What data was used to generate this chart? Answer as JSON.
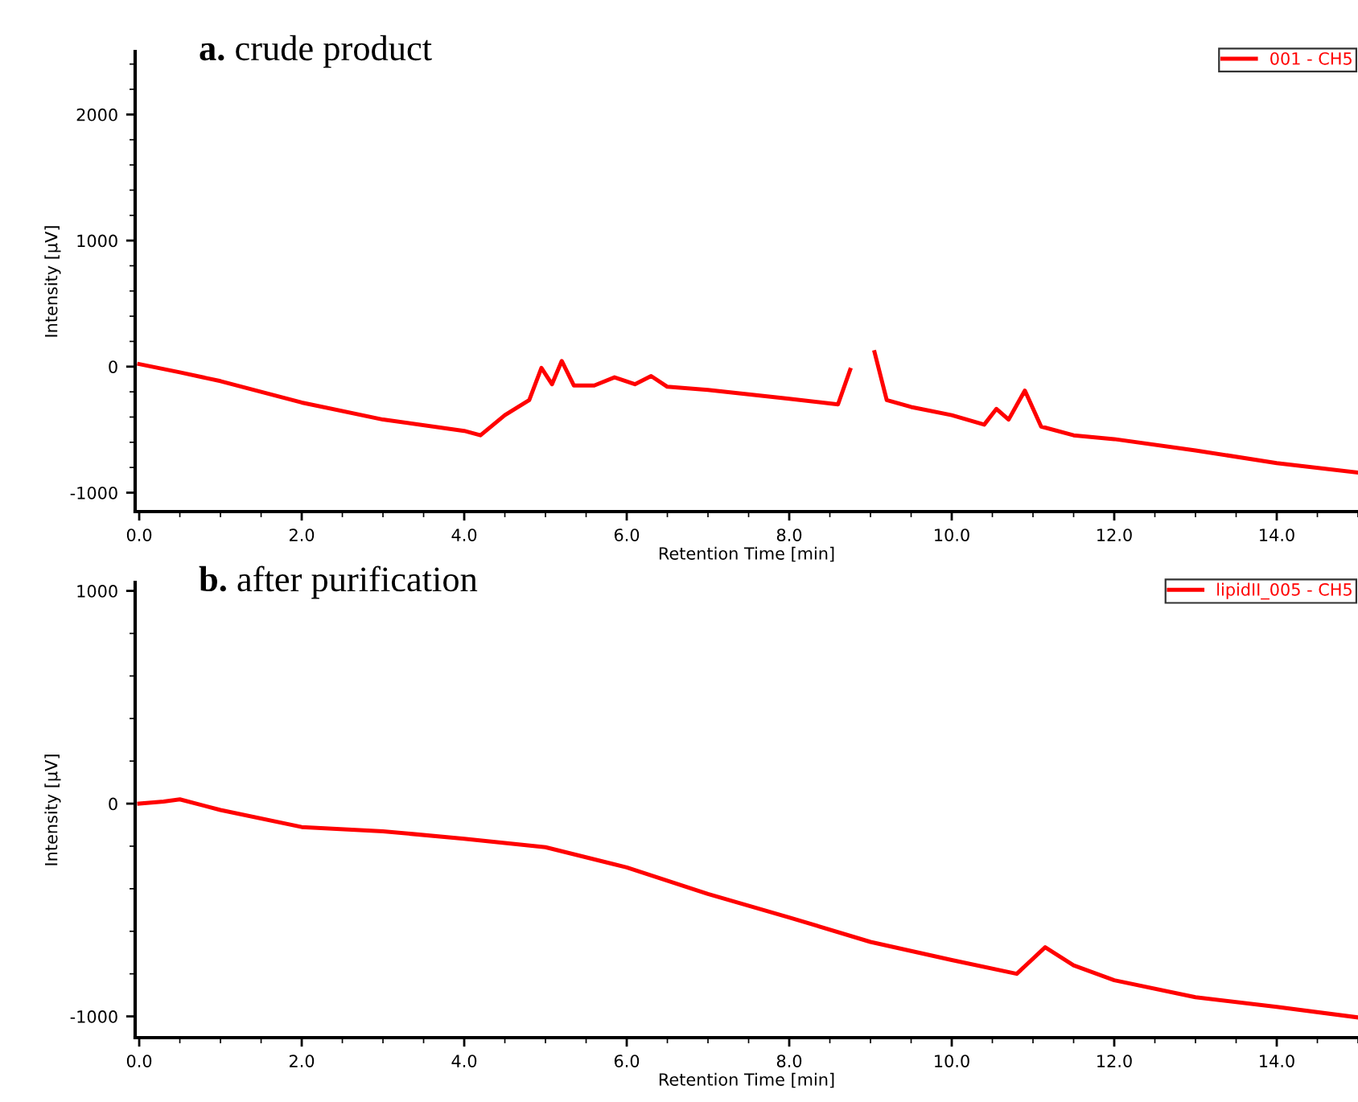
{
  "chart_data": [
    {
      "type": "line",
      "title": "a. crude product",
      "xlabel": "Retention Time [min]",
      "ylabel": "Intensity [µV]",
      "xlim": [
        -0.05,
        15.0
      ],
      "xticks": [
        {
          "value": 0,
          "label": "0.0"
        },
        {
          "value": 2,
          "label": "2.0"
        },
        {
          "value": 4,
          "label": "4.0"
        },
        {
          "value": 6,
          "label": "6.0"
        },
        {
          "value": 8,
          "label": "8.0"
        },
        {
          "value": 10,
          "label": "10.0"
        },
        {
          "value": 12,
          "label": "12.0"
        },
        {
          "value": 14,
          "label": "14.0"
        }
      ],
      "ylim": [
        -1150,
        2500
      ],
      "yticks": [
        -1000,
        0,
        1000,
        2000
      ],
      "grid": false,
      "legend": "top right",
      "marker": "none",
      "line_style": "solid",
      "series": [
        {
          "name": "001 - CH5",
          "color": "#ff0000",
          "x": [
            0,
            0.5,
            1.0,
            2.0,
            3.0,
            4.0,
            4.2,
            4.5,
            4.8,
            4.95,
            5.08,
            5.2,
            5.35,
            5.6,
            5.85,
            6.1,
            6.3,
            6.5,
            7.0,
            8.0,
            8.6,
            8.75,
            8.82,
            8.92,
            9.05,
            9.2,
            9.5,
            10.0,
            10.4,
            10.55,
            10.7,
            10.9,
            11.1,
            11.5,
            12.0,
            13.0,
            14.0,
            15.0
          ],
          "values": [
            20,
            -45,
            -115,
            -285,
            -420,
            -510,
            -545,
            -385,
            -265,
            -10,
            -140,
            45,
            -150,
            -150,
            -85,
            -140,
            -75,
            -160,
            -185,
            -255,
            -300,
            -25,
            null,
            null,
            115,
            -265,
            -320,
            -385,
            -460,
            -335,
            -420,
            -190,
            -475,
            -545,
            -575,
            -665,
            -765,
            -840
          ]
        }
      ]
    },
    {
      "type": "line",
      "title": "b. after purification",
      "xlabel": "Retention Time [min]",
      "ylabel": "Intensity [µV]",
      "xlim": [
        -0.05,
        15.0
      ],
      "xticks": [
        {
          "value": 0,
          "label": "0.0"
        },
        {
          "value": 2,
          "label": "2.0"
        },
        {
          "value": 4,
          "label": "4.0"
        },
        {
          "value": 6,
          "label": "6.0"
        },
        {
          "value": 8,
          "label": "8.0"
        },
        {
          "value": 10,
          "label": "10.0"
        },
        {
          "value": 12,
          "label": "12.0"
        },
        {
          "value": 14,
          "label": "14.0"
        }
      ],
      "ylim": [
        -1100,
        1040
      ],
      "yticks": [
        -1000,
        0,
        1000
      ],
      "grid": false,
      "legend": "top right",
      "marker": "none",
      "line_style": "solid",
      "series": [
        {
          "name": "lipidII_005 - CH5",
          "color": "#ff0000",
          "x": [
            0,
            0.3,
            0.5,
            1.0,
            2.0,
            3.0,
            4.0,
            5.0,
            6.0,
            7.0,
            8.0,
            9.0,
            10.0,
            10.8,
            11.15,
            11.5,
            12.0,
            13.0,
            14.0,
            15.0
          ],
          "values": [
            0,
            10,
            20,
            -30,
            -110,
            -130,
            -165,
            -205,
            -300,
            -425,
            -535,
            -650,
            -735,
            -800,
            -675,
            -760,
            -830,
            -910,
            -955,
            -1005
          ]
        }
      ]
    }
  ]
}
